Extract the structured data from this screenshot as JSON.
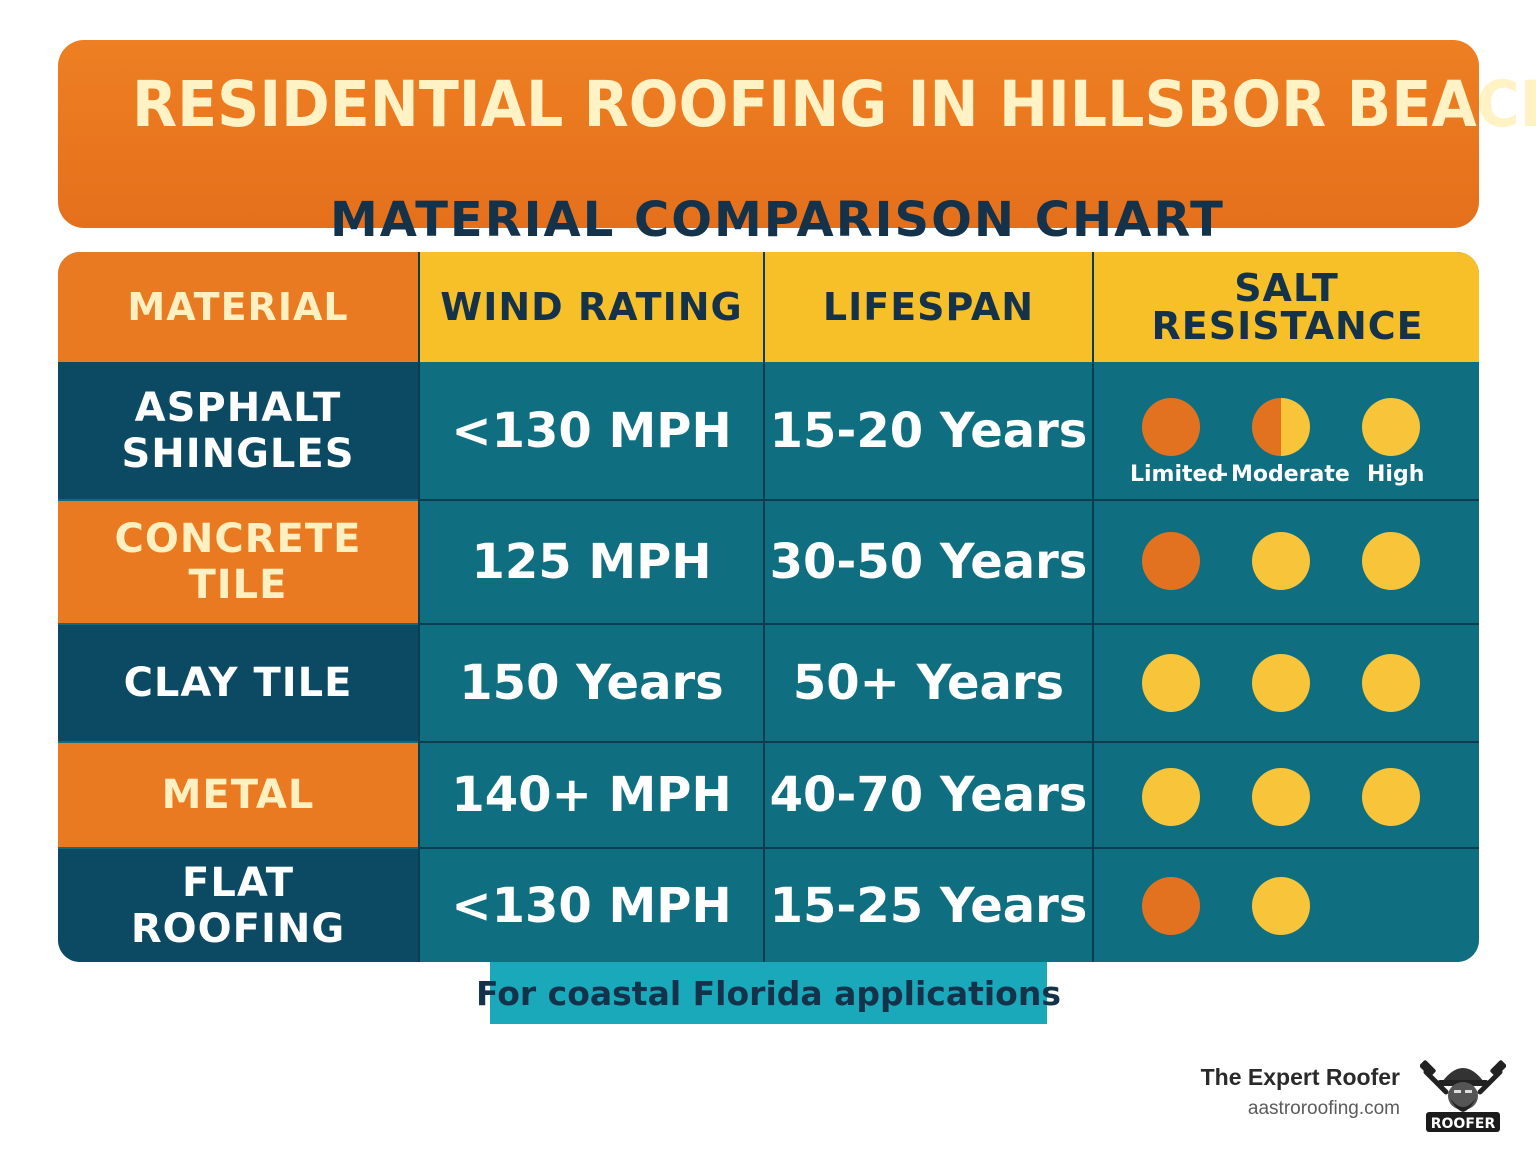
{
  "header": {
    "title": "RESIDENTIAL ROOFING IN HILLSBOR BEACH",
    "subtitle": "MATERIAL COMPARISON CHART"
  },
  "table": {
    "columns": [
      "MATERIAL",
      "WIND RATING",
      "LIFESPAN",
      "SALT RESISTANCE"
    ],
    "salt_legend": {
      "limited": "Limited",
      "separator": "-",
      "moderate": "Moderate",
      "high": "High"
    },
    "rows": [
      {
        "material": "ASPHALT SHINGLES",
        "wind": "<130 MPH",
        "lifespan": "15-20 Years",
        "salt": [
          "limited",
          "half",
          "high"
        ]
      },
      {
        "material": "CONCRETE TILE",
        "wind": "125 MPH",
        "lifespan": "30-50 Years",
        "salt": [
          "limited",
          "high",
          "high"
        ]
      },
      {
        "material": "CLAY TILE",
        "wind": "150 Years",
        "lifespan": "50+ Years",
        "salt": [
          "high",
          "high",
          "high"
        ]
      },
      {
        "material": "METAL",
        "wind": "140+ MPH",
        "lifespan": "40-70 Years",
        "salt": [
          "high",
          "high",
          "high"
        ]
      },
      {
        "material": "FLAT ROOFING",
        "wind": "<130 MPH",
        "lifespan": "15-25 Years",
        "salt": [
          "limited",
          "high"
        ]
      }
    ]
  },
  "footnote": "For coastal Florida applications",
  "brand": {
    "name": "The Expert Roofer",
    "url": "aastroroofing.com",
    "logo_icon": "roofer-hardhat-icon",
    "logo_text": "ROOFER"
  },
  "colors": {
    "orange": "#ea7a21",
    "yellow": "#f7c028",
    "teal": "#0f6f80",
    "navy": "#0b4a62",
    "dark_text": "#14324a"
  }
}
